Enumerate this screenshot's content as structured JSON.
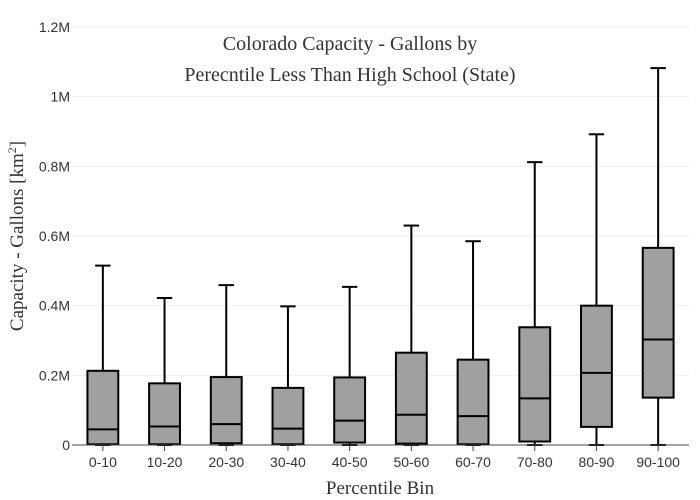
{
  "chart_data": {
    "type": "box",
    "title_lines": [
      "Colorado Capacity - Gallons by",
      "Perecntile Less Than High School (State)"
    ],
    "xlabel": "Percentile Bin",
    "ylabel_main": "Capacity - Gallons  [km",
    "ylabel_sup": "2",
    "ylabel_close": "]",
    "ylim": [
      0,
      1200000
    ],
    "y_ticks": [
      {
        "value": 0,
        "label": "0"
      },
      {
        "value": 200000,
        "label": "0.2M"
      },
      {
        "value": 400000,
        "label": "0.4M"
      },
      {
        "value": 600000,
        "label": "0.6M"
      },
      {
        "value": 800000,
        "label": "0.8M"
      },
      {
        "value": 1000000,
        "label": "1M"
      },
      {
        "value": 1200000,
        "label": "1.2M"
      }
    ],
    "grid": true,
    "box_fill": "#a0a0a0",
    "categories": [
      "0-10",
      "10-20",
      "20-30",
      "30-40",
      "40-50",
      "50-60",
      "60-70",
      "70-80",
      "80-90",
      "90-100"
    ],
    "boxes": [
      {
        "min": 0,
        "q1": 2000,
        "median": 45000,
        "q3": 213000,
        "max": 515000
      },
      {
        "min": 0,
        "q1": 2000,
        "median": 53000,
        "q3": 177000,
        "max": 422000
      },
      {
        "min": 0,
        "q1": 5000,
        "median": 60000,
        "q3": 195000,
        "max": 459000
      },
      {
        "min": 0,
        "q1": 2000,
        "median": 47000,
        "q3": 164000,
        "max": 398000
      },
      {
        "min": 0,
        "q1": 7000,
        "median": 70000,
        "q3": 194000,
        "max": 454000
      },
      {
        "min": 0,
        "q1": 4000,
        "median": 87000,
        "q3": 265000,
        "max": 630000
      },
      {
        "min": 0,
        "q1": 2000,
        "median": 83000,
        "q3": 245000,
        "max": 585000
      },
      {
        "min": 0,
        "q1": 10000,
        "median": 134000,
        "q3": 338000,
        "max": 812000
      },
      {
        "min": 0,
        "q1": 52000,
        "median": 207000,
        "q3": 400000,
        "max": 892000
      },
      {
        "min": 0,
        "q1": 136000,
        "median": 303000,
        "q3": 566000,
        "max": 1082000
      }
    ]
  }
}
